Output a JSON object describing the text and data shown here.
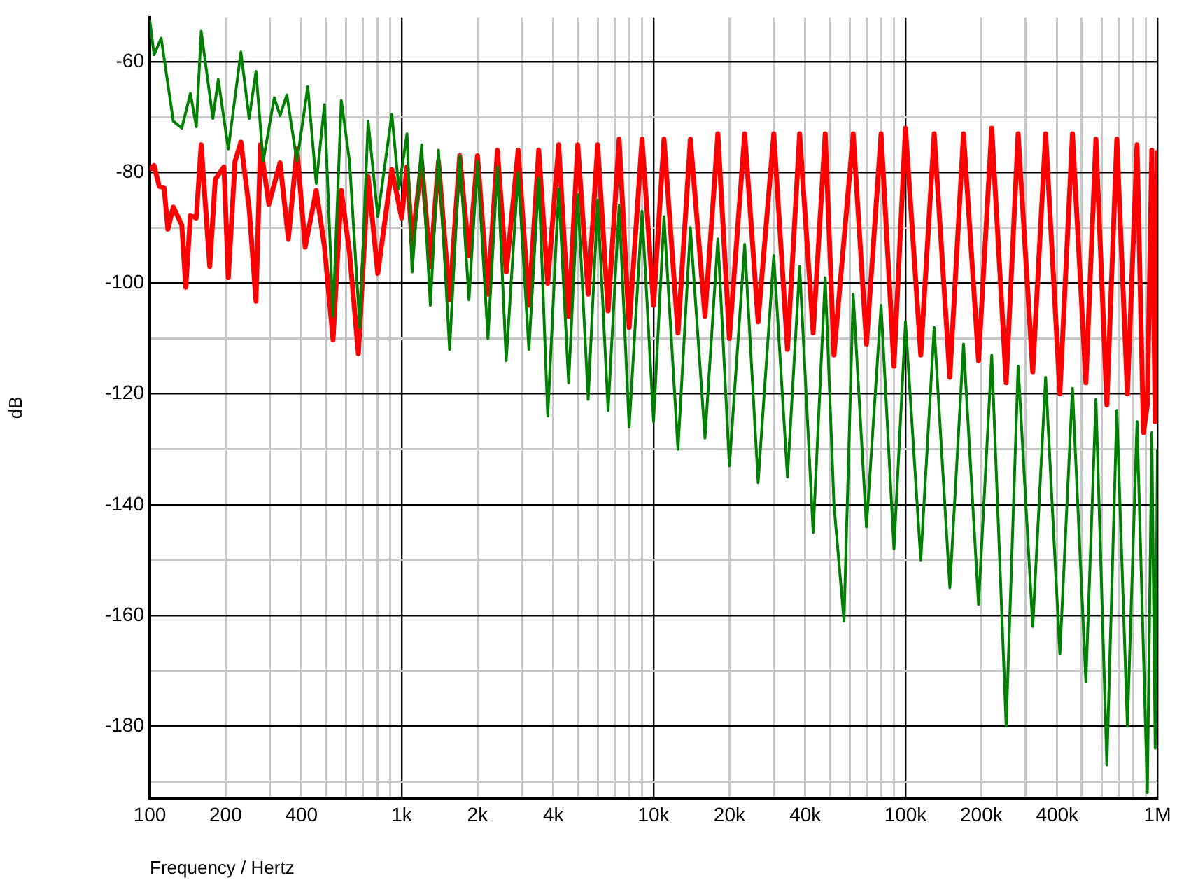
{
  "chart_data": {
    "type": "line",
    "xlabel": "Frequency / Hertz",
    "ylabel": "dB",
    "log": "x",
    "grid": true,
    "legend": false,
    "marker": "none",
    "line_style": "solid",
    "xlim": [
      100,
      1000000
    ],
    "ylim": [
      -193,
      -52
    ],
    "xticks": [
      100,
      200,
      {
        "value": 300,
        "label": null
      },
      400,
      {
        "value": 500,
        "label": null
      },
      {
        "value": 600,
        "label": null
      },
      {
        "value": 700,
        "label": null
      },
      {
        "value": 800,
        "label": null
      },
      {
        "value": 900,
        "label": null
      },
      {
        "value": 1000,
        "label": "1k"
      },
      {
        "value": 2000,
        "label": "2k"
      },
      {
        "value": 3000,
        "label": null
      },
      {
        "value": 4000,
        "label": "4k"
      },
      {
        "value": 5000,
        "label": null
      },
      {
        "value": 6000,
        "label": null
      },
      {
        "value": 7000,
        "label": null
      },
      {
        "value": 8000,
        "label": null
      },
      {
        "value": 9000,
        "label": null
      },
      {
        "value": 10000,
        "label": "10k"
      },
      {
        "value": 20000,
        "label": "20k"
      },
      {
        "value": 30000,
        "label": null
      },
      {
        "value": 40000,
        "label": "40k"
      },
      {
        "value": 50000,
        "label": null
      },
      {
        "value": 60000,
        "label": null
      },
      {
        "value": 70000,
        "label": null
      },
      {
        "value": 80000,
        "label": null
      },
      {
        "value": 90000,
        "label": null
      },
      {
        "value": 100000,
        "label": "100k"
      },
      {
        "value": 200000,
        "label": "200k"
      },
      {
        "value": 300000,
        "label": null
      },
      {
        "value": 400000,
        "label": "400k"
      },
      {
        "value": 500000,
        "label": null
      },
      {
        "value": 600000,
        "label": null
      },
      {
        "value": 700000,
        "label": null
      },
      {
        "value": 800000,
        "label": null
      },
      {
        "value": 900000,
        "label": null
      },
      {
        "value": 1000000,
        "label": "1M"
      }
    ],
    "yticks": [
      -60,
      {
        "value": -70,
        "label": null
      },
      -80,
      {
        "value": -90,
        "label": null
      },
      -100,
      {
        "value": -110,
        "label": null
      },
      -120,
      {
        "value": -130,
        "label": null
      },
      -140,
      {
        "value": -150,
        "label": null
      },
      -160,
      {
        "value": -170,
        "label": null
      },
      -180,
      {
        "value": -190,
        "label": null
      }
    ],
    "series": [
      {
        "color": "#ff0000",
        "x": [
          100,
          104,
          109,
          114,
          118,
          124,
          134,
          139,
          145,
          153,
          160,
          173,
          182,
          197,
          205,
          218,
          230,
          248,
          264,
          275,
          297,
          329,
          355,
          384,
          414,
          458,
          494,
          534,
          576,
          621,
          673,
          736,
          804,
          914,
          1000,
          1050,
          1100,
          1200,
          1300,
          1400,
          1550,
          1700,
          1850,
          2000,
          2200,
          2400,
          2600,
          2900,
          3200,
          3500,
          3800,
          4200,
          4600,
          5000,
          5500,
          6000,
          6600,
          7300,
          8000,
          9000,
          10000,
          11000,
          12500,
          14000,
          16000,
          18000,
          20000,
          23000,
          26000,
          30000,
          34000,
          38000,
          43000,
          48000,
          52000,
          62000,
          70000,
          80000,
          90000,
          100000,
          115000,
          130000,
          150000,
          170000,
          195000,
          220000,
          251000,
          280000,
          320000,
          360000,
          410000,
          460000,
          520000,
          570000,
          630000,
          690000,
          760000,
          830000,
          880000,
          912000,
          950000,
          980000,
          1000000
        ],
        "values": [
          -79.5,
          -78.75,
          -82.5,
          -82.75,
          -90.25,
          -86.25,
          -89.5,
          -100.75,
          -87.75,
          -88.25,
          -75,
          -97,
          -81.25,
          -79,
          -99,
          -78,
          -74.5,
          -86.5,
          -103.25,
          -75,
          -85.75,
          -78.25,
          -92,
          -75.75,
          -93.5,
          -83.25,
          -93.5,
          -110.25,
          -83.25,
          -94.5,
          -112.75,
          -80.75,
          -98.25,
          -79.5,
          -88.25,
          -79,
          -93,
          -78,
          -97,
          -78,
          -103,
          -77,
          -95,
          -77,
          -102,
          -76,
          -98,
          -76,
          -104,
          -76,
          -100,
          -75,
          -106,
          -75,
          -102,
          -75,
          -105,
          -74,
          -108,
          -74,
          -104,
          -74,
          -109,
          -74,
          -106,
          -73,
          -110,
          -73,
          -107,
          -73,
          -112,
          -73,
          -109,
          -73,
          -113,
          -73,
          -111,
          -73,
          -115,
          -72,
          -113,
          -73,
          -117,
          -73,
          -114,
          -72,
          -118,
          -73,
          -116,
          -73,
          -120,
          -73,
          -118,
          -74,
          -122,
          -74,
          -120,
          -75,
          -127,
          -122,
          -76,
          -125,
          -76
        ]
      },
      {
        "color": "#008000",
        "x": [
          100,
          104,
          111,
          124,
          134,
          145,
          153,
          160,
          178,
          187,
          205,
          230,
          248,
          264,
          282,
          312,
          329,
          350,
          384,
          424,
          458,
          494,
          534,
          576,
          621,
          682,
          736,
          804,
          914,
          975,
          1050,
          1100,
          1200,
          1300,
          1400,
          1550,
          1700,
          1850,
          2000,
          2200,
          2400,
          2600,
          2900,
          3200,
          3500,
          3800,
          4200,
          4600,
          5000,
          5500,
          6000,
          6600,
          7300,
          8000,
          9000,
          10000,
          11000,
          12500,
          14000,
          16000,
          18000,
          20000,
          23000,
          26000,
          30000,
          34000,
          38000,
          43000,
          48000,
          52000,
          57000,
          62000,
          70000,
          80000,
          90000,
          100000,
          115000,
          130000,
          150000,
          170000,
          195000,
          220000,
          251000,
          280000,
          320000,
          360000,
          410000,
          460000,
          520000,
          570000,
          630000,
          690000,
          760000,
          830000,
          912000,
          950000,
          980000,
          1000000
        ],
        "values": [
          -52.5,
          -58.75,
          -55.75,
          -70.75,
          -72,
          -65.75,
          -71.75,
          -54.5,
          -70.25,
          -63.25,
          -75.75,
          -58.25,
          -70.25,
          -61.75,
          -78,
          -66.5,
          -69.75,
          -66,
          -78,
          -64.5,
          -82,
          -67.75,
          -106,
          -67,
          -78,
          -108,
          -70.75,
          -88,
          -69.5,
          -83,
          -73,
          -98,
          -75,
          -104,
          -76,
          -112,
          -77,
          -103,
          -78,
          -110,
          -79,
          -114,
          -80,
          -112,
          -81,
          -124,
          -83,
          -118,
          -84,
          -121,
          -85,
          -123,
          -86,
          -126,
          -87,
          -125,
          -88,
          -130,
          -90,
          -128,
          -92,
          -133,
          -93,
          -136,
          -95,
          -135,
          -97,
          -145,
          -99,
          -140,
          -161,
          -102,
          -144,
          -104,
          -148,
          -107,
          -150,
          -108,
          -155,
          -111,
          -158,
          -113,
          -180,
          -115,
          -162,
          -117,
          -167,
          -119,
          -172,
          -121,
          -187,
          -123,
          -180,
          -125,
          -192,
          -127,
          -184,
          -130
        ]
      }
    ]
  }
}
